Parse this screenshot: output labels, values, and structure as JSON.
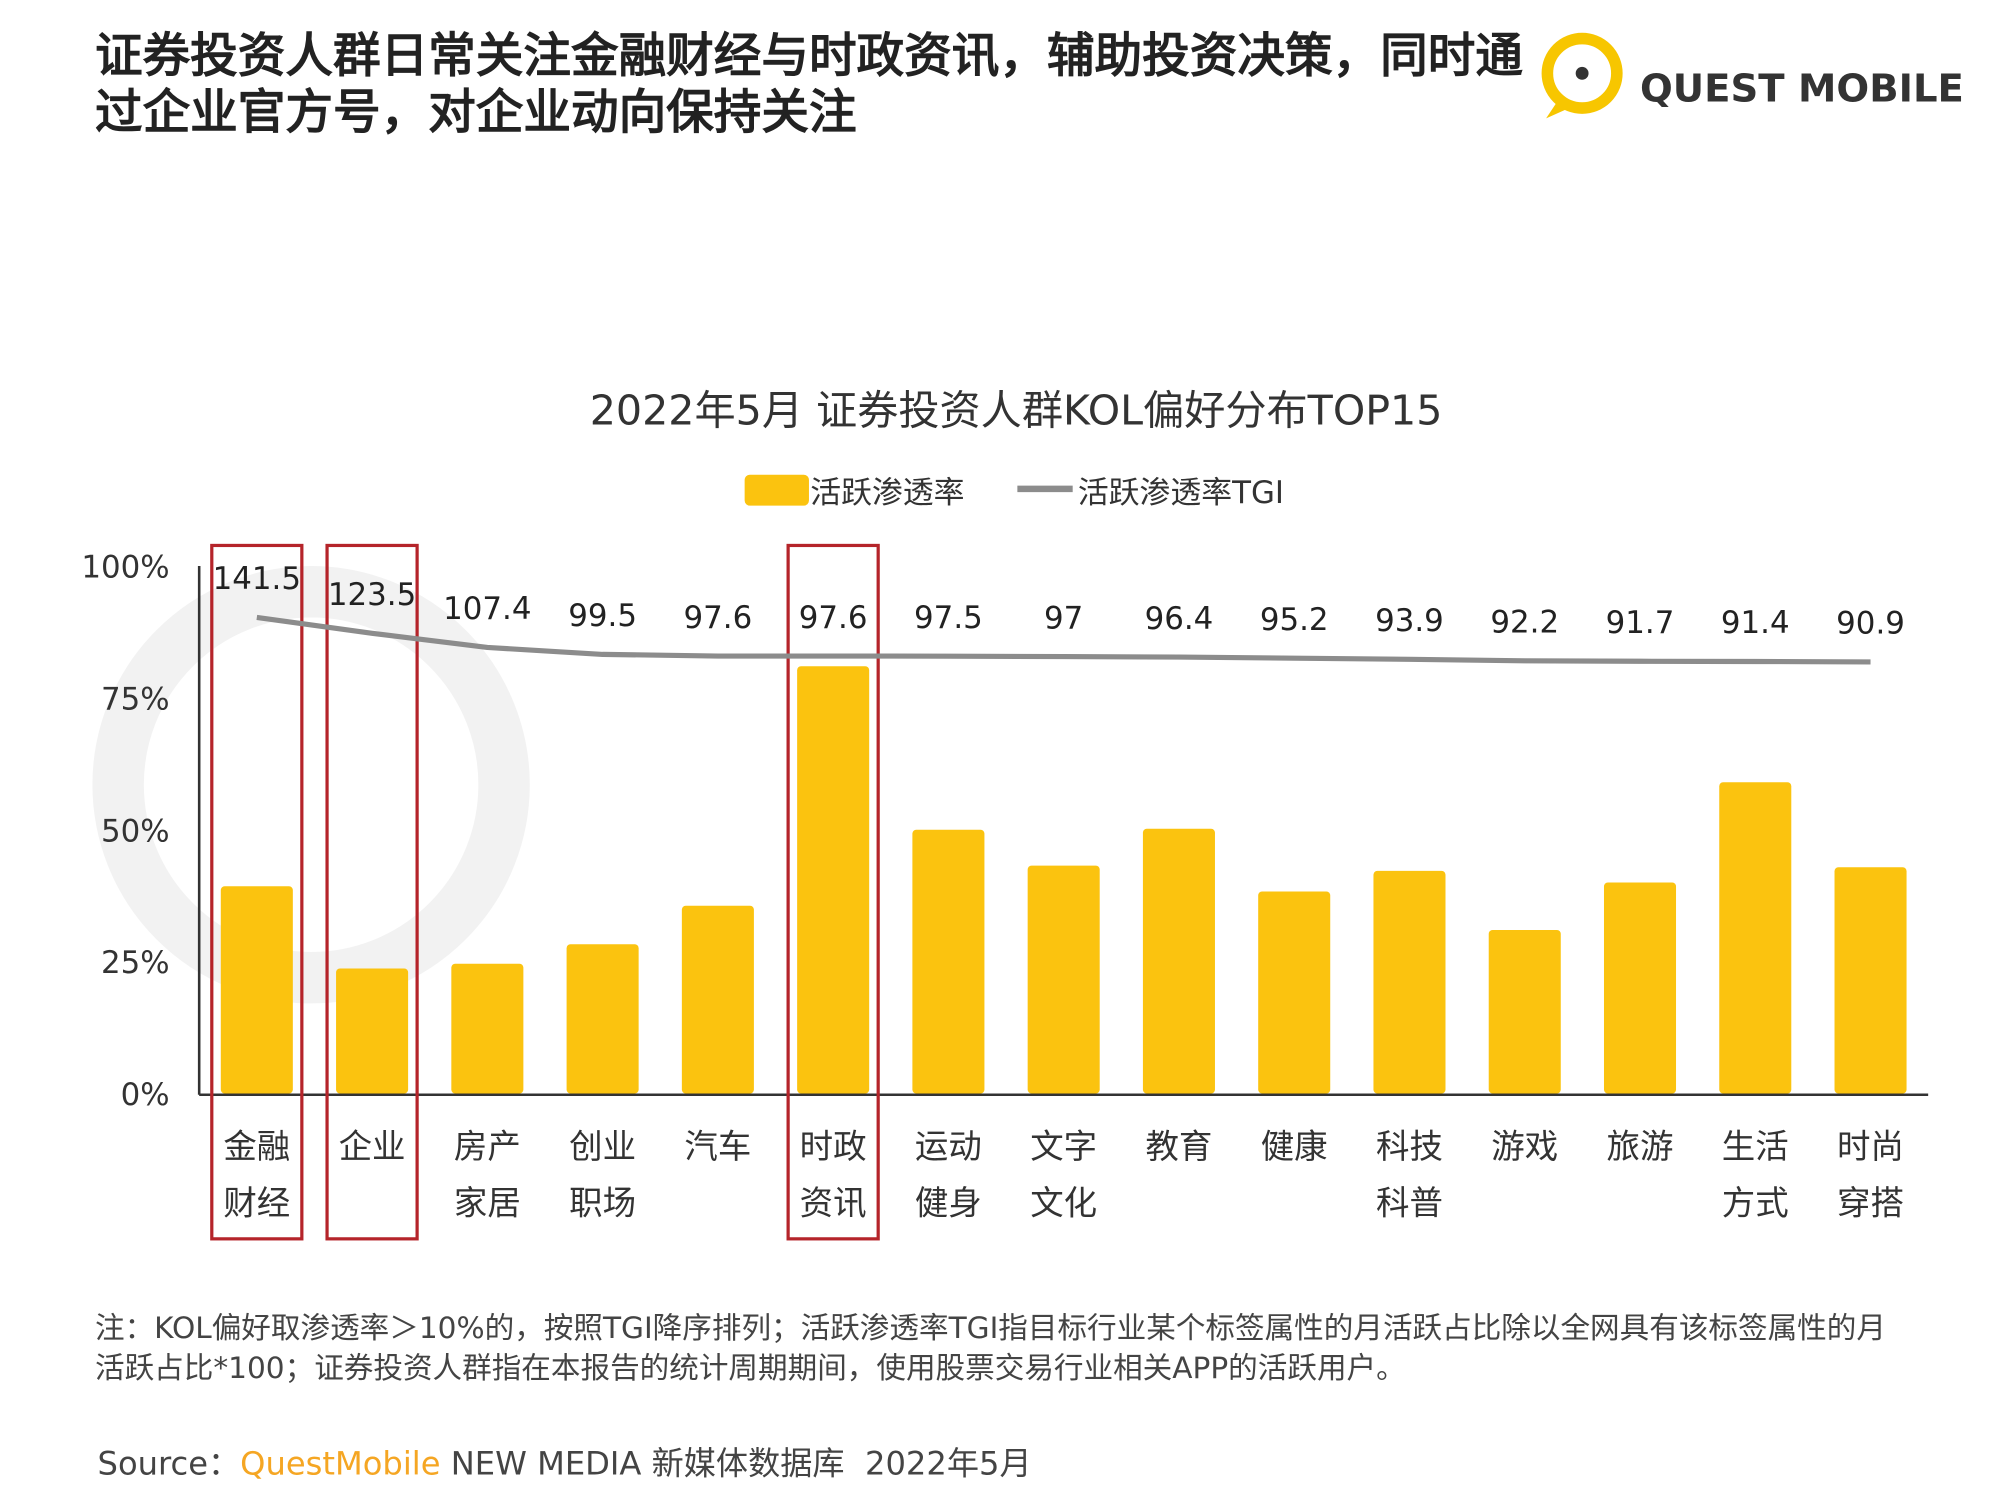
{
  "header": {
    "title": "证券投资人群日常关注金融财经与时政资讯，辅助投资决策，同时通过企业官方号，对企业动向保持关注",
    "logo": "QUEST MOBILE"
  },
  "chart_data": {
    "type": "bar",
    "title": "2022年5月 证券投资人群KOL偏好分布TOP15",
    "categories": [
      "金融财经",
      "企业",
      "房产家居",
      "创业职场",
      "汽车",
      "时政资讯",
      "运动健身",
      "文字文化",
      "教育",
      "健康",
      "科技科普",
      "游戏",
      "旅游",
      "生活方式",
      "时尚穿搭"
    ],
    "series": [
      {
        "name": "活跃渗透率",
        "color": "#fbc30f",
        "values": [
          39.3,
          23.7,
          24.6,
          28.3,
          35.6,
          81.0,
          50.0,
          43.2,
          50.2,
          38.3,
          42.2,
          31.0,
          40.0,
          59.0,
          42.9
        ]
      },
      {
        "name": "活跃渗透率TGI",
        "color": "#8c8c8c",
        "axis": "y2",
        "values": [
          141.5,
          123.5,
          107.4,
          99.5,
          97.6,
          97.6,
          97.5,
          97.0,
          96.4,
          95.2,
          93.9,
          92.2,
          91.7,
          91.4,
          90.9
        ]
      }
    ],
    "ylim": [
      0,
      100
    ],
    "yticks": [
      {
        "value": 0,
        "label": "0%"
      },
      {
        "value": 25,
        "label": "25%"
      },
      {
        "value": 50,
        "label": "50%"
      },
      {
        "value": 75,
        "label": "75%"
      },
      {
        "value": 100,
        "label": "100%"
      }
    ],
    "y2lim": [
      -400,
      200
    ],
    "grid": false,
    "highlight_color": "#b5242a",
    "highlighted_categories": [
      "金融财经",
      "企业",
      "时政资讯"
    ]
  },
  "footer": {
    "note": "注：KOL偏好取渗透率＞10%的，按照TGI降序排列；活跃渗透率TGI指目标行业某个标签属性的月活跃占比除以全网具有该标签属性的月活跃占比*100；证券投资人群指在本报告的统计周期期间，使用股票交易行业相关APP的活跃用户。",
    "source_label": "Source：",
    "source_name": "QuestMobile",
    "source_rest": " NEW MEDIA 新媒体数据库  2022年5月"
  }
}
